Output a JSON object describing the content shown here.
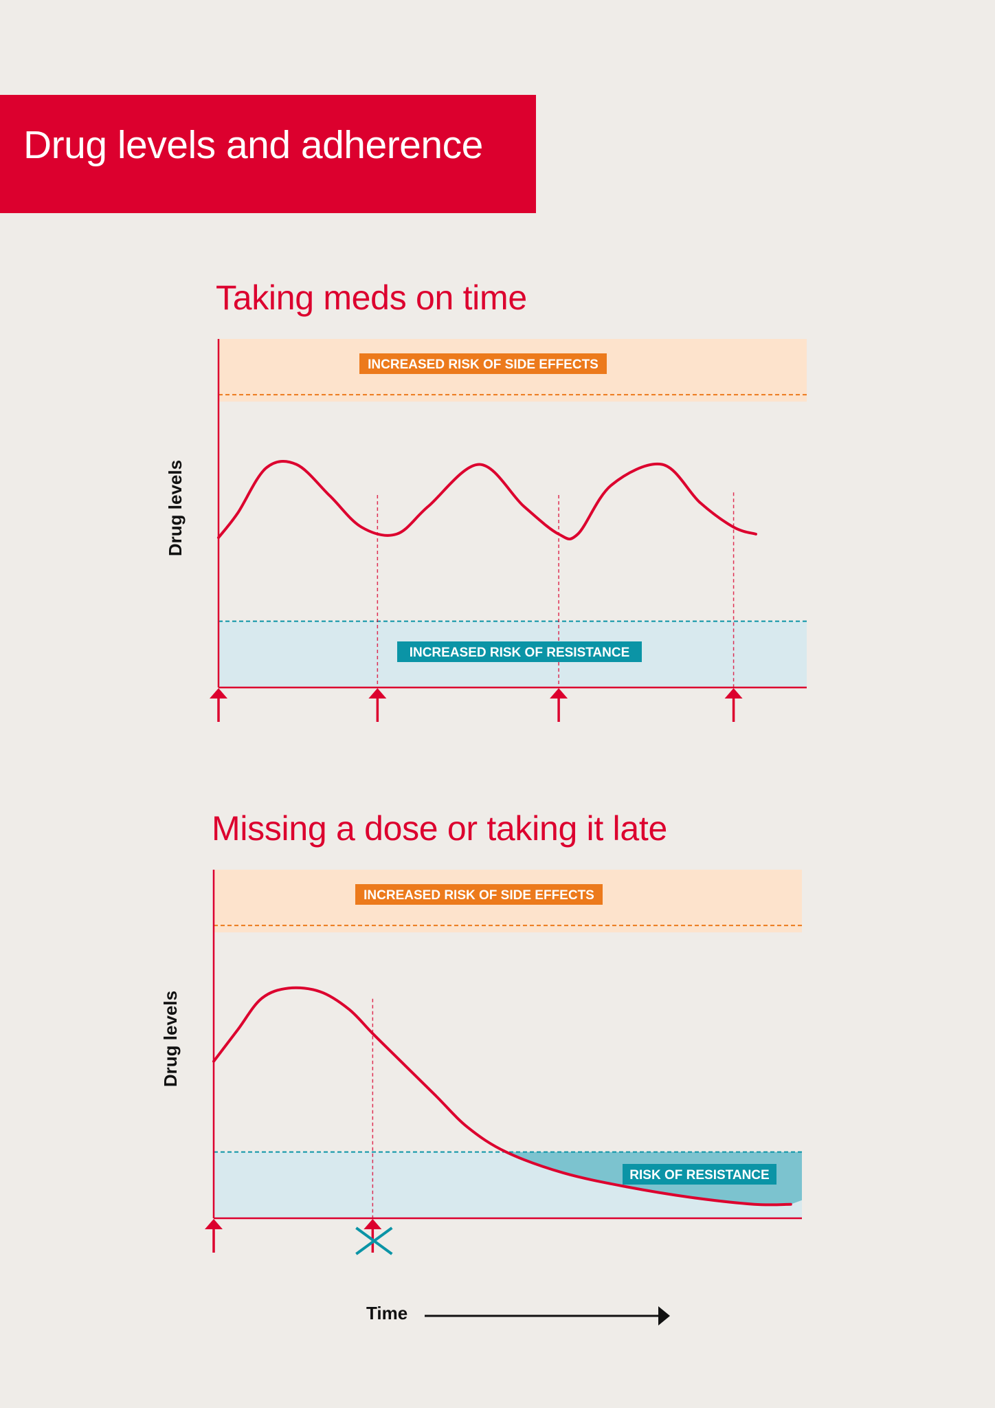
{
  "page": {
    "title": "Drug levels and adherence"
  },
  "colors": {
    "brand": "#dc002e",
    "side_effects": "#ec7a1c",
    "side_effects_zone": "#fde3cc",
    "resistance": "#0b94a6",
    "resistance_zone": "#d8e9ee",
    "resistance_dark_zone": "#7cc3cf"
  },
  "x_axis": {
    "label": "Time"
  },
  "chart_data": [
    {
      "type": "line",
      "title": "Taking meds on time",
      "ylabel": "Drug levels",
      "xlabel": "Time",
      "xlim": [
        0,
        3.7
      ],
      "ylim": [
        0,
        100
      ],
      "zones": [
        {
          "name": "side_effects",
          "label": "INCREASED RISK OF SIDE EFFECTS",
          "range": [
            84,
            100
          ]
        },
        {
          "name": "resistance",
          "label": "INCREASED RISK OF RESISTANCE",
          "range": [
            0,
            19
          ]
        }
      ],
      "doses": [
        {
          "time": 0,
          "status": "taken"
        },
        {
          "time": 1,
          "status": "taken"
        },
        {
          "time": 2.14,
          "status": "taken"
        },
        {
          "time": 3.24,
          "status": "taken"
        }
      ],
      "series": [
        {
          "name": "Drug level",
          "x": [
            0,
            0.12,
            0.3,
            0.49,
            0.7,
            0.9,
            1.12,
            1.32,
            1.64,
            1.92,
            2.14,
            2.26,
            2.47,
            2.79,
            3.03,
            3.24,
            3.38
          ],
          "y": [
            43,
            50,
            63,
            64,
            55,
            46,
            44,
            52,
            64,
            52,
            44,
            44,
            58,
            64,
            53,
            46,
            44
          ]
        }
      ]
    },
    {
      "type": "line",
      "title": "Missing a dose or taking it late",
      "ylabel": "Drug levels",
      "xlabel": "Time",
      "xlim": [
        0,
        3.7
      ],
      "ylim": [
        0,
        100
      ],
      "zones": [
        {
          "name": "side_effects",
          "label": "INCREASED RISK OF SIDE EFFECTS",
          "range": [
            84,
            100
          ]
        },
        {
          "name": "resistance",
          "label": "RISK OF RESISTANCE",
          "range": [
            0,
            19
          ]
        }
      ],
      "doses": [
        {
          "time": 0,
          "status": "taken"
        },
        {
          "time": 1,
          "status": "missed"
        }
      ],
      "series": [
        {
          "name": "Drug level",
          "x": [
            0,
            0.15,
            0.3,
            0.47,
            0.67,
            0.85,
            1.0,
            1.2,
            1.4,
            1.6,
            1.84,
            2.2,
            2.6,
            3.0,
            3.4,
            3.63
          ],
          "y": [
            45,
            54,
            63,
            66,
            65,
            60,
            53,
            44,
            35,
            26,
            19,
            13,
            9,
            6,
            4,
            4
          ]
        }
      ]
    }
  ]
}
